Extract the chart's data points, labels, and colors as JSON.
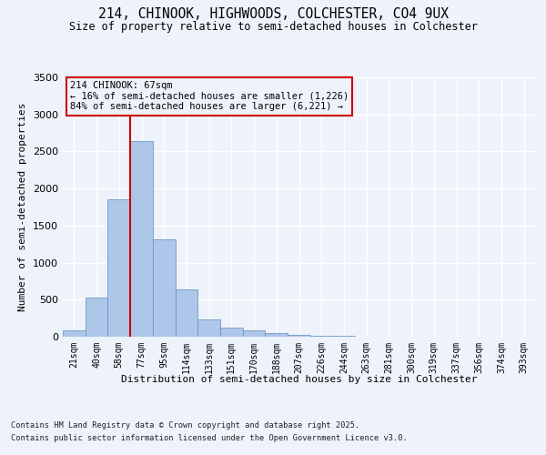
{
  "title1": "214, CHINOOK, HIGHWOODS, COLCHESTER, CO4 9UX",
  "title2": "Size of property relative to semi-detached houses in Colchester",
  "xlabel": "Distribution of semi-detached houses by size in Colchester",
  "ylabel": "Number of semi-detached properties",
  "footer1": "Contains HM Land Registry data © Crown copyright and database right 2025.",
  "footer2": "Contains public sector information licensed under the Open Government Licence v3.0.",
  "annotation_line1": "214 CHINOOK: 67sqm",
  "annotation_line2": "← 16% of semi-detached houses are smaller (1,226)",
  "annotation_line3": "84% of semi-detached houses are larger (6,221) →",
  "categories": [
    "21sqm",
    "40sqm",
    "58sqm",
    "77sqm",
    "95sqm",
    "114sqm",
    "133sqm",
    "151sqm",
    "170sqm",
    "188sqm",
    "207sqm",
    "226sqm",
    "244sqm",
    "263sqm",
    "281sqm",
    "300sqm",
    "319sqm",
    "337sqm",
    "356sqm",
    "374sqm",
    "393sqm"
  ],
  "values": [
    80,
    530,
    1850,
    2640,
    1310,
    640,
    230,
    120,
    80,
    55,
    30,
    15,
    8,
    5,
    3,
    2,
    1,
    1,
    0,
    0,
    0
  ],
  "bar_color": "#aec6e8",
  "bar_edge_color": "#5a8fc0",
  "vline_color": "#cc0000",
  "vline_x": 2.5,
  "annotation_box_color": "#cc0000",
  "ylim": [
    0,
    3500
  ],
  "yticks": [
    0,
    500,
    1000,
    1500,
    2000,
    2500,
    3000,
    3500
  ],
  "background_color": "#eef2fa",
  "grid_color": "#ffffff"
}
